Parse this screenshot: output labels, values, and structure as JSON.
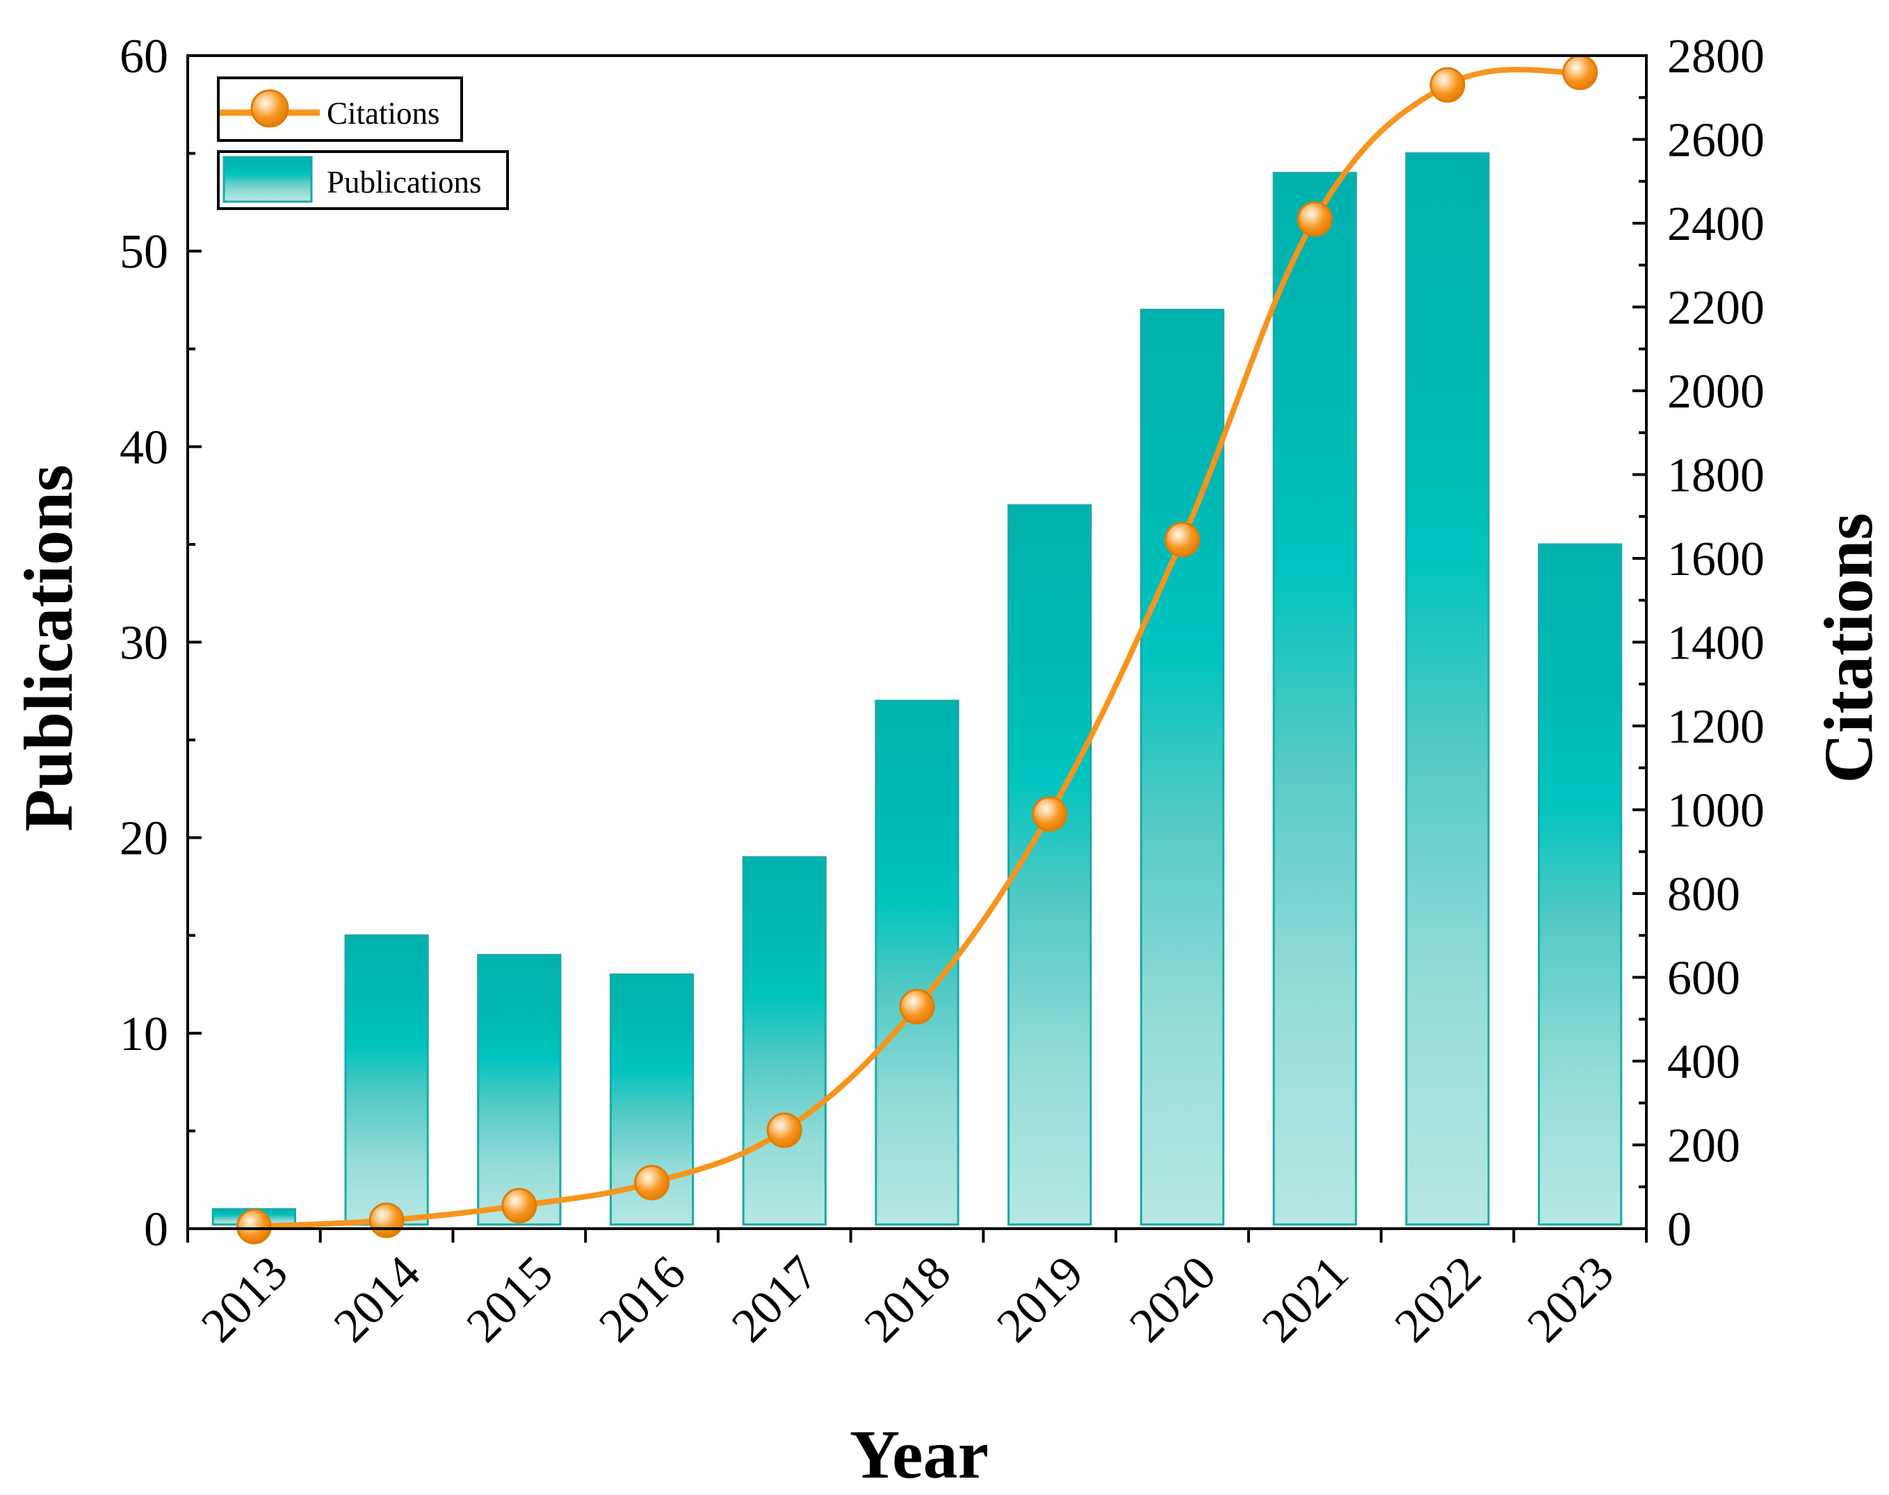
{
  "chart_data": {
    "type": "bar+line",
    "categories": [
      "2013",
      "2014",
      "2015",
      "2016",
      "2017",
      "2018",
      "2019",
      "2020",
      "2021",
      "2022",
      "2023"
    ],
    "series": [
      {
        "name": "Publications",
        "type": "bar",
        "axis": "left",
        "values": [
          1,
          15,
          14,
          13,
          19,
          27,
          37,
          47,
          54,
          55,
          35
        ]
      },
      {
        "name": "Citations",
        "type": "line",
        "axis": "right",
        "values": [
          5,
          20,
          55,
          110,
          235,
          530,
          990,
          1645,
          2410,
          2730,
          2760
        ]
      }
    ],
    "xlabel": "Year",
    "ylabel": "Publications",
    "y2label": "Citations",
    "ylim": [
      0,
      60
    ],
    "y2lim": [
      0,
      2800
    ],
    "yticks": [
      "0",
      "10",
      "20",
      "30",
      "40",
      "50",
      "60"
    ],
    "y2ticks": [
      "0",
      "200",
      "400",
      "600",
      "800",
      "1000",
      "1200",
      "1400",
      "1600",
      "1800",
      "2000",
      "2200",
      "2400",
      "2600",
      "2800"
    ],
    "legend": {
      "position": "top-left",
      "citations_label": "Citations",
      "publications_label": "Publications"
    },
    "colors": {
      "bar_top": "#00b4b0",
      "bar_mid": "#00c4bf",
      "bar_bottom": "#b5e6e2",
      "bar_edge": "#18aaa6",
      "line": "#f7941d",
      "marker": "#f7941d",
      "axis": "#000000"
    }
  }
}
